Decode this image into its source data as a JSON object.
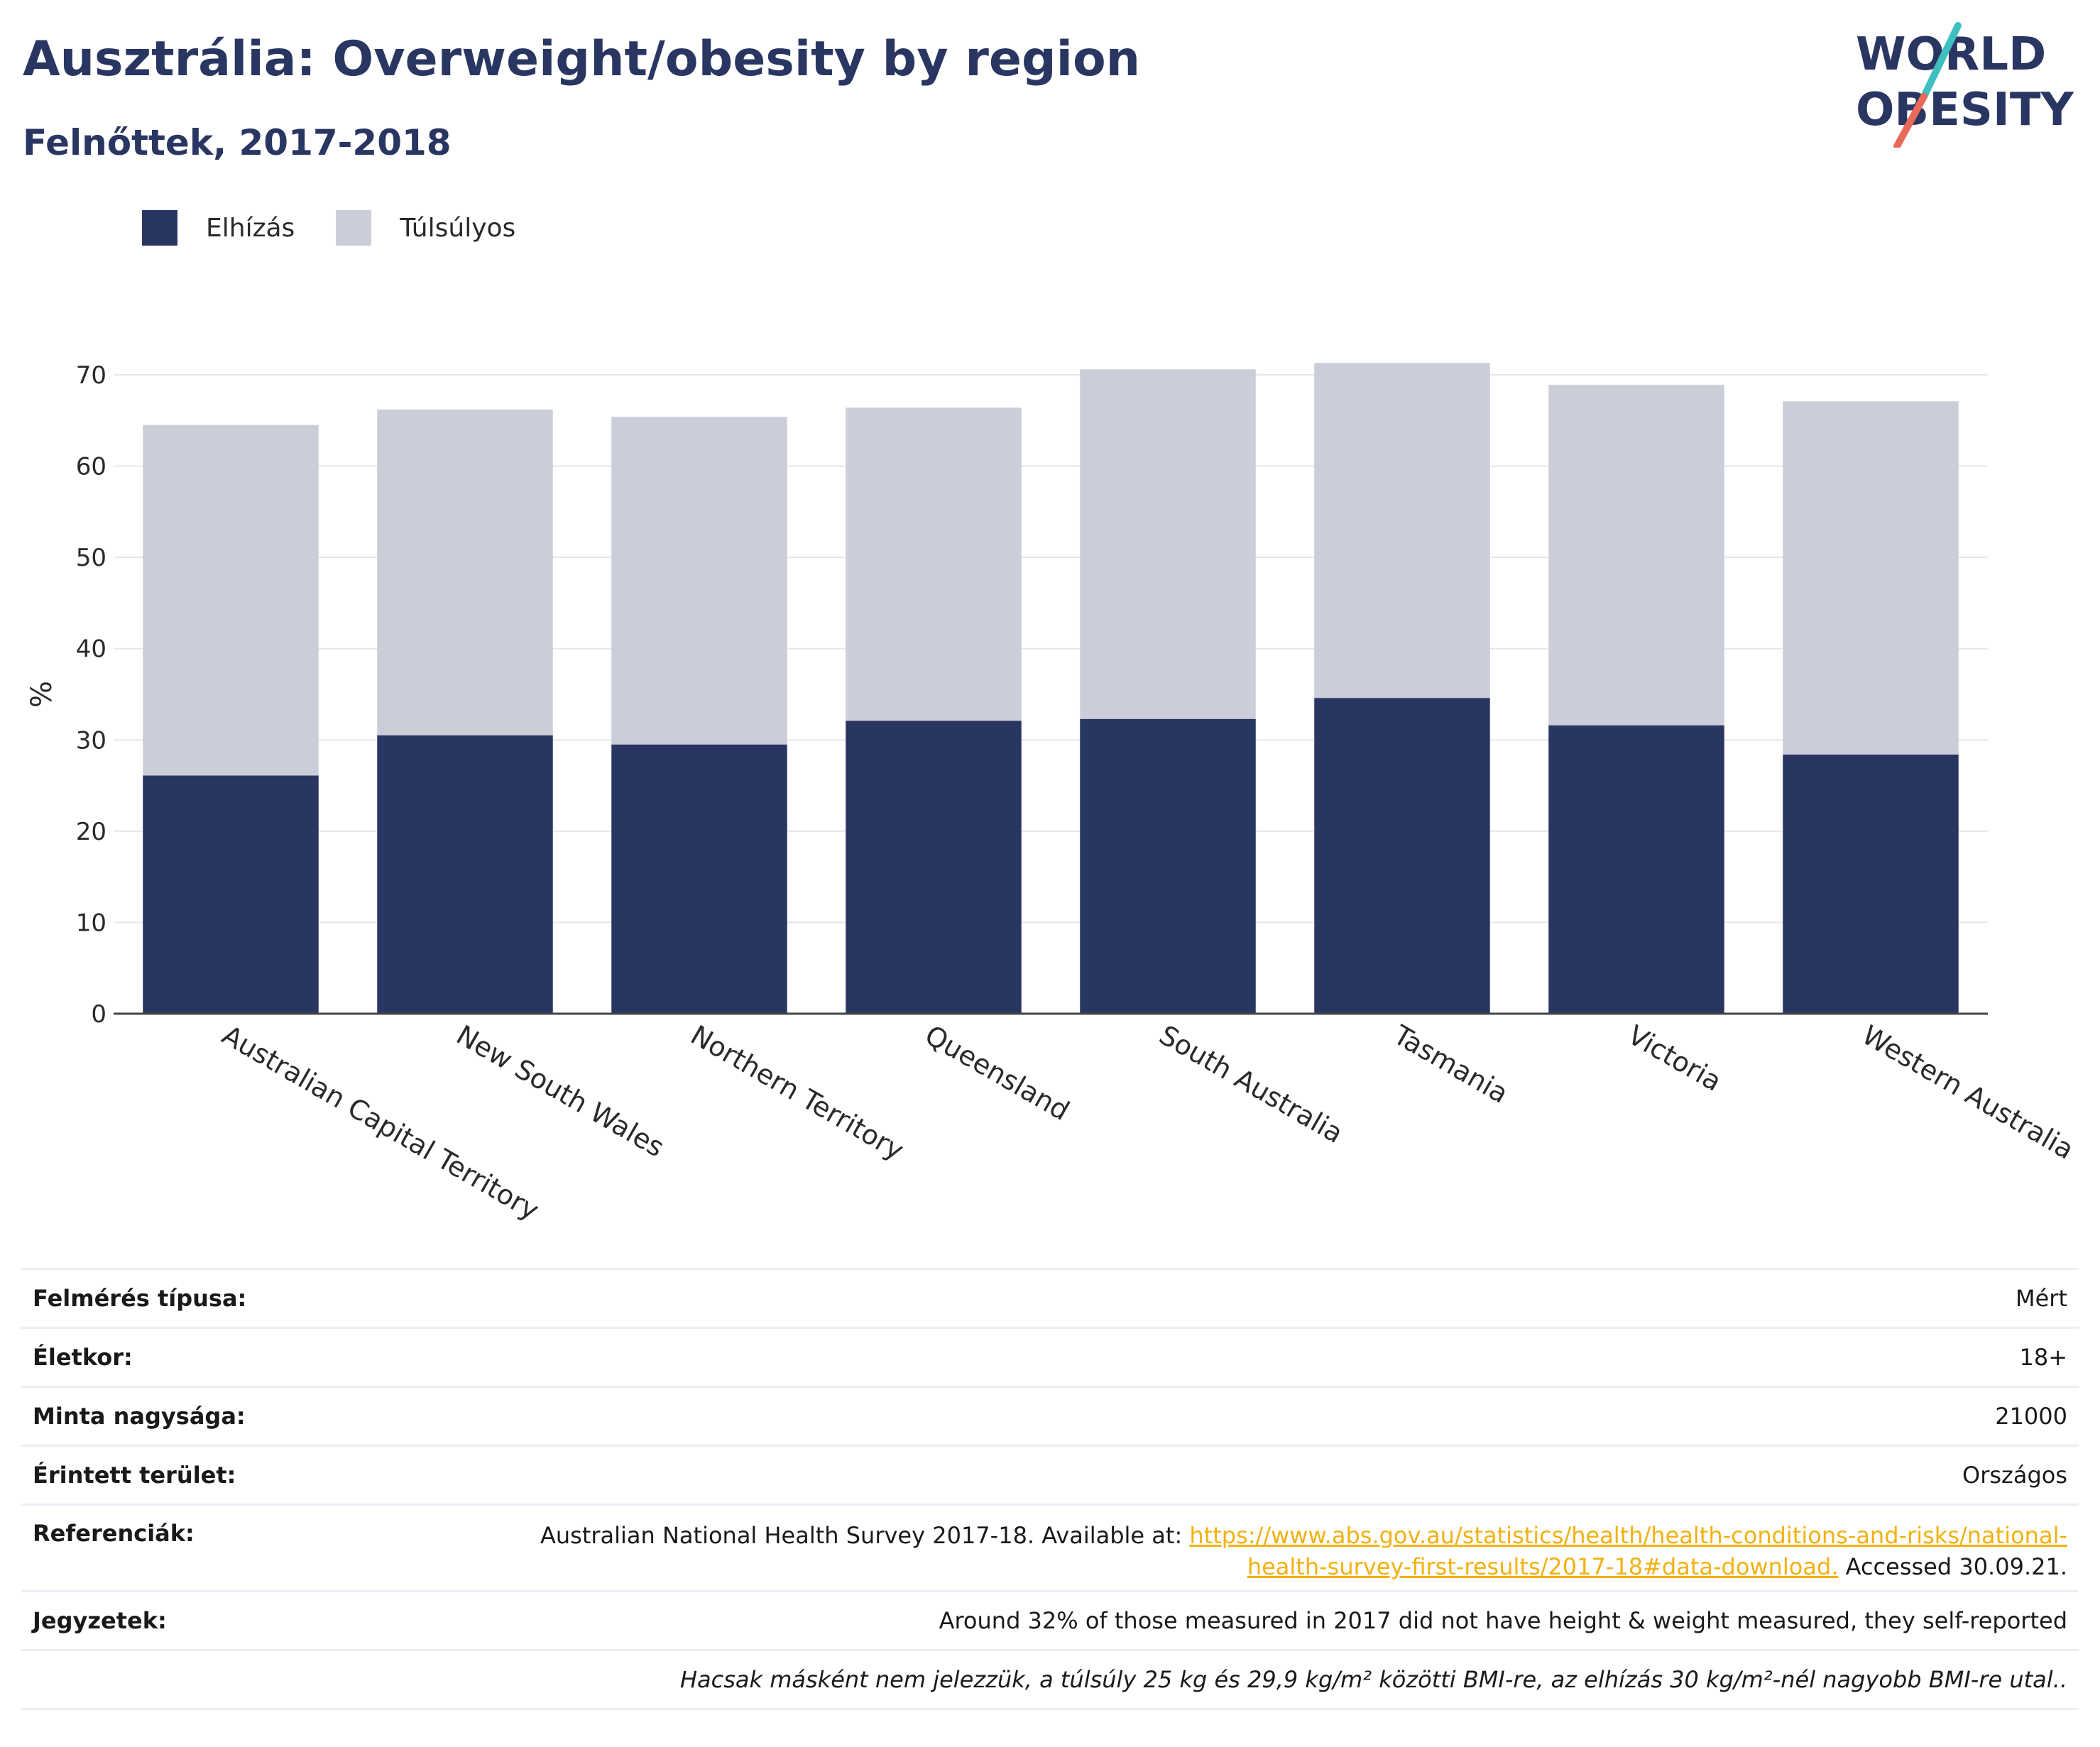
{
  "header": {
    "title": "Ausztrália: Overweight/obesity by region",
    "subtitle": "Felnőttek, 2017-2018"
  },
  "logo": {
    "line1": "WORLD",
    "line2": "OBESITY"
  },
  "colors": {
    "obesity": "#2a3662",
    "overweight": "#cbcdd8",
    "accent_teal": "#3fbfbf",
    "accent_coral": "#e86a5b",
    "link": "#f2b111"
  },
  "chart_data": {
    "type": "bar",
    "stacked": true,
    "categories": [
      "Australian Capital Territory",
      "New South Wales",
      "Northern Territory",
      "Queensland",
      "South Australia",
      "Tasmania",
      "Victoria",
      "Western Australia"
    ],
    "series": [
      {
        "name": "Elhízás",
        "values": [
          26.1,
          30.5,
          29.5,
          32.1,
          32.3,
          34.6,
          31.6,
          28.4
        ]
      },
      {
        "name": "Túlsúlyos",
        "values": [
          38.4,
          35.7,
          35.9,
          34.3,
          38.3,
          36.7,
          37.3,
          38.7
        ]
      }
    ],
    "ylabel": "%",
    "ylim": [
      0,
      70
    ],
    "yticks": [
      0,
      10,
      20,
      30,
      40,
      50,
      60,
      70
    ],
    "grid": true,
    "legend_position": "top-left"
  },
  "info": {
    "survey_type_label": "Felmérés típusa:",
    "survey_type_value": "Mért",
    "age_label": "Életkor:",
    "age_value": "18+",
    "sample_label": "Minta nagysága:",
    "sample_value": "21000",
    "area_label": "Érintett terület:",
    "area_value": "Országos",
    "ref_label": "Referenciák:",
    "ref_text_before": "Australian National Health Survey 2017-18. Available at: ",
    "ref_link_line1": "https://www.abs.gov.au/statistics/health/health-conditions-and-risks/national-",
    "ref_link_line2": "health-survey-first-results/2017-18#data-download.",
    "ref_text_after": " Accessed 30.09.21.",
    "notes_label": "Jegyzetek:",
    "notes_value": "Around 32% of those measured in 2017 did not have height & weight measured, they self-reported",
    "footnote": "Hacsak másként nem jelezzük, a túlsúly 25 kg és 29,9 kg/m² közötti BMI-re, az elhízás 30 kg/m²-nél nagyobb BMI-re utal.."
  }
}
